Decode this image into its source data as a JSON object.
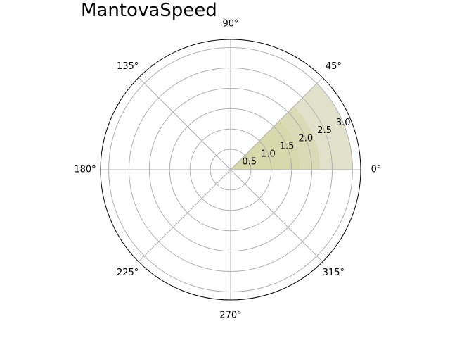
{
  "chart_data": {
    "type": "polar-area",
    "title": "MantovaSpeed",
    "r_max": 3.2,
    "r_ticks": [
      0.5,
      1.0,
      1.5,
      2.0,
      2.5,
      3.0
    ],
    "r_tick_labels": [
      "0.5",
      "1.0",
      "1.5",
      "2.0",
      "2.5",
      "3.0"
    ],
    "r_label_angle_deg": 22.5,
    "theta_ticks_deg": [
      0,
      45,
      90,
      135,
      180,
      225,
      270,
      315
    ],
    "theta_tick_labels": [
      "0°",
      "45°",
      "90°",
      "135°",
      "180°",
      "225°",
      "270°",
      "315°"
    ],
    "grid": true,
    "wedges": [
      {
        "theta_start": 0,
        "theta_end": 45,
        "r": 1.7,
        "color": "#f0f0c0",
        "opacity": 0.75
      },
      {
        "theta_start": 0,
        "theta_end": 45,
        "r": 2.2,
        "color": "#e6e6b0",
        "opacity": 0.6
      },
      {
        "theta_start": 0,
        "theta_end": 45,
        "r": 3.0,
        "color": "#c8c8a0",
        "opacity": 0.55
      }
    ]
  }
}
